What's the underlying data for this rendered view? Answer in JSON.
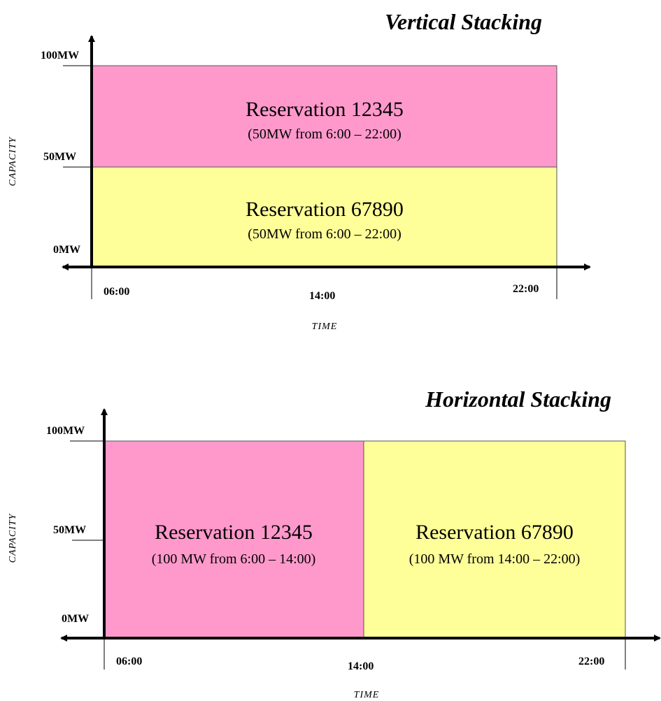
{
  "colors": {
    "pink": "#ff99cc",
    "yellow": "#ffff99",
    "axis": "#000000"
  },
  "vertical": {
    "title": "Vertical Stacking",
    "y_ticks": [
      "100MW",
      "50MW",
      "0MW"
    ],
    "x_ticks": [
      "06:00",
      "14:00",
      "22:00"
    ],
    "ylabel": "CAPACITY",
    "xlabel": "TIME",
    "blocks": [
      {
        "name": "Reservation 12345",
        "detail": "(50MW from 6:00 – 22:00)"
      },
      {
        "name": "Reservation 67890",
        "detail": "(50MW from 6:00 – 22:00)"
      }
    ]
  },
  "horizontal": {
    "title": "Horizontal Stacking",
    "y_ticks": [
      "100MW",
      "50MW",
      "0MW"
    ],
    "x_ticks": [
      "06:00",
      "14:00",
      "22:00"
    ],
    "ylabel": "CAPACITY",
    "xlabel": "TIME",
    "blocks": [
      {
        "name": "Reservation 12345",
        "detail": "(100 MW from 6:00 – 14:00)"
      },
      {
        "name": "Reservation 67890",
        "detail": "(100 MW from 14:00 – 22:00)"
      }
    ]
  }
}
